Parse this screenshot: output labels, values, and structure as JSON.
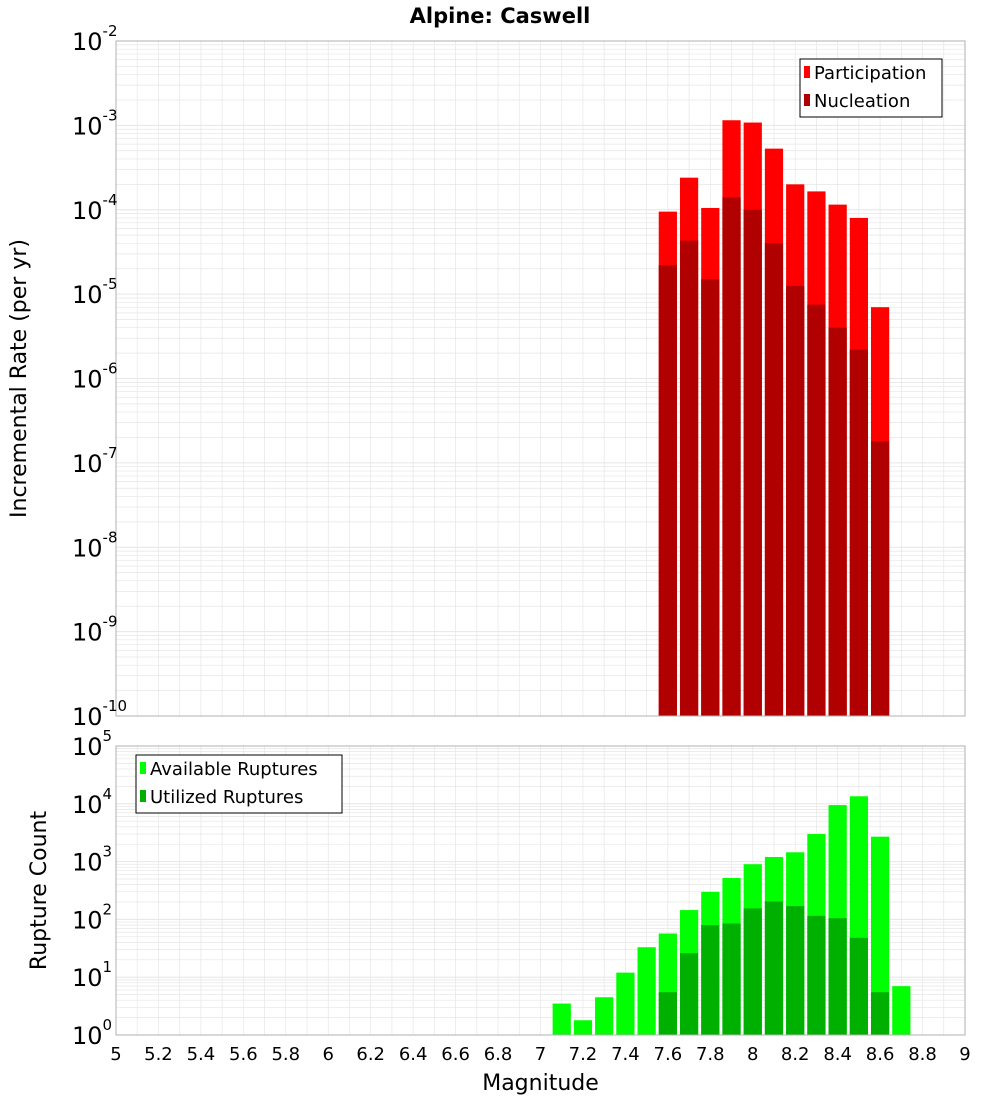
{
  "title": "Alpine: Caswell",
  "colors": {
    "participation": "#ff0000",
    "nucleation": "#b00000",
    "available": "#00ff00",
    "utilized": "#00b000",
    "grid": "#e6e6e6",
    "frame": "#b0b0b0"
  },
  "chart_data": [
    {
      "type": "bar",
      "scale": "log",
      "title": "Alpine: Caswell",
      "xlabel": "Magnitude",
      "ylabel": "Incremental Rate (per yr)",
      "xlim": [
        5,
        9
      ],
      "ylim_exponent": [
        -10,
        -2
      ],
      "bin_width": 0.1,
      "legend": "top-right",
      "x": [
        7.6,
        7.7,
        7.8,
        7.9,
        8.0,
        8.1,
        8.2,
        8.3,
        8.4,
        8.5,
        8.6,
        8.7
      ],
      "series": [
        {
          "name": "Participation",
          "color": "#ff0000",
          "values": [
            9.5e-05,
            0.00024,
            0.000105,
            0.00115,
            0.00108,
            0.00053,
            0.0002,
            0.000165,
            0.000115,
            8e-05,
            7e-06,
            0
          ]
        },
        {
          "name": "Nucleation",
          "color": "#b00000",
          "values": [
            2.2e-05,
            4.3e-05,
            1.5e-05,
            0.00014,
            0.0001,
            4e-05,
            1.25e-05,
            7.5e-06,
            4e-06,
            2.2e-06,
            1.8e-07,
            0
          ]
        }
      ],
      "y_ticks": [
        {
          "base": "10",
          "exp": "-2"
        },
        {
          "base": "10",
          "exp": "-3"
        },
        {
          "base": "10",
          "exp": "-4"
        },
        {
          "base": "10",
          "exp": "-5"
        },
        {
          "base": "10",
          "exp": "-6"
        },
        {
          "base": "10",
          "exp": "-7"
        },
        {
          "base": "10",
          "exp": "-8"
        },
        {
          "base": "10",
          "exp": "-9"
        },
        {
          "base": "10",
          "exp": "-10"
        }
      ]
    },
    {
      "type": "bar",
      "scale": "log",
      "xlabel": "Magnitude",
      "ylabel": "Rupture Count",
      "xlim": [
        5,
        9
      ],
      "ylim_exponent": [
        0,
        5
      ],
      "bin_width": 0.1,
      "legend": "top-left",
      "x": [
        7.0,
        7.1,
        7.2,
        7.3,
        7.4,
        7.5,
        7.6,
        7.7,
        7.8,
        7.9,
        8.0,
        8.1,
        8.2,
        8.3,
        8.4,
        8.5,
        8.6,
        8.7,
        8.8
      ],
      "series": [
        {
          "name": "Available Ruptures",
          "color": "#00ff00",
          "values": [
            1,
            3.5,
            1.8,
            4.5,
            12,
            33,
            57,
            145,
            300,
            520,
            900,
            1200,
            1450,
            3000,
            9500,
            13500,
            2700,
            7,
            0
          ]
        },
        {
          "name": "Utilized Ruptures",
          "color": "#00b000",
          "values": [
            0,
            0,
            0,
            0,
            0,
            0,
            5.5,
            26,
            80,
            85,
            155,
            205,
            170,
            115,
            105,
            48,
            5.5,
            0,
            0
          ]
        }
      ],
      "y_ticks": [
        {
          "base": "10",
          "exp": "5"
        },
        {
          "base": "10",
          "exp": "4"
        },
        {
          "base": "10",
          "exp": "3"
        },
        {
          "base": "10",
          "exp": "2"
        },
        {
          "base": "10",
          "exp": "1"
        },
        {
          "base": "10",
          "exp": "0"
        }
      ],
      "x_ticks": [
        "5",
        "5.2",
        "5.4",
        "5.6",
        "5.8",
        "6",
        "6.2",
        "6.4",
        "6.6",
        "6.8",
        "7",
        "7.2",
        "7.4",
        "7.6",
        "7.8",
        "8",
        "8.2",
        "8.4",
        "8.6",
        "8.8",
        "9"
      ]
    }
  ]
}
